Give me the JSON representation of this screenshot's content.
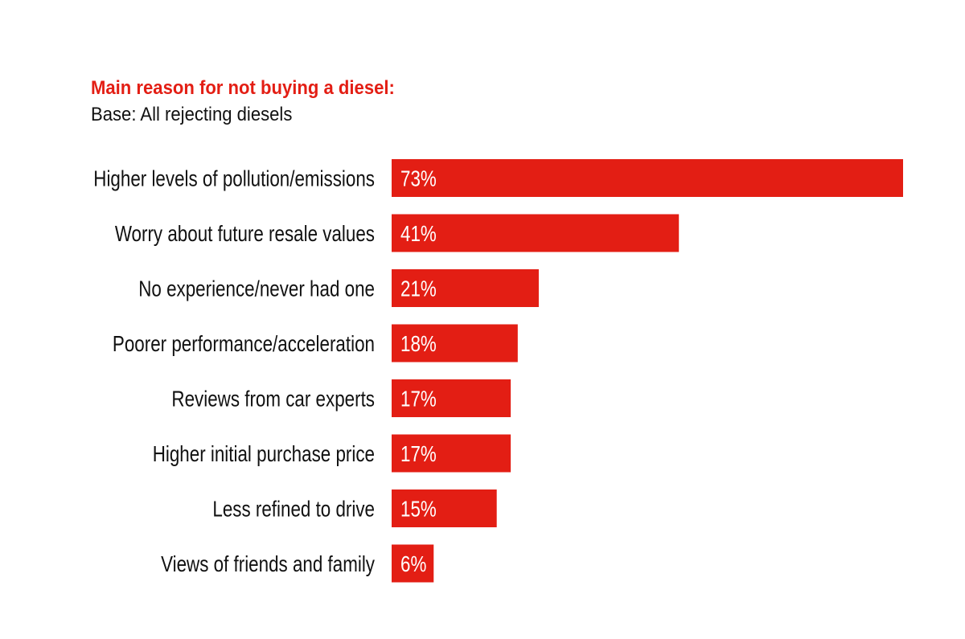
{
  "chart_data": {
    "type": "bar",
    "orientation": "horizontal",
    "title": "Main reason for not buying a diesel:",
    "subtitle": "Base: All rejecting diesels",
    "categories": [
      "Higher levels of pollution/emissions",
      "Worry about future resale values",
      "No experience/never had one",
      "Poorer performance/acceleration",
      "Reviews from car experts",
      "Higher initial purchase price",
      "Less refined to drive",
      "Views of friends and family"
    ],
    "values": [
      73,
      41,
      21,
      18,
      17,
      17,
      15,
      6
    ],
    "data_labels": [
      "73%",
      "41%",
      "21%",
      "18%",
      "17%",
      "17%",
      "15%",
      "6%"
    ],
    "unit": "%",
    "xlim": [
      0,
      73
    ],
    "grid": false,
    "bar_color": "#e31e14",
    "title_color": "#e31e14"
  }
}
